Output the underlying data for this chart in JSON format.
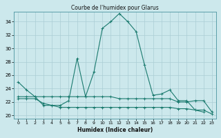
{
  "title": "Courbe de l'humidex pour Glarus",
  "xlabel": "Humidex (Indice chaleur)",
  "ylabel": "",
  "bg_color": "#cce8ec",
  "grid_color": "#aacdd4",
  "line_color": "#1a7a6e",
  "xlim": [
    -0.5,
    23.5
  ],
  "ylim": [
    19.5,
    35.5
  ],
  "yticks": [
    20,
    22,
    24,
    26,
    28,
    30,
    32,
    34
  ],
  "xticks": [
    0,
    1,
    2,
    3,
    4,
    5,
    6,
    7,
    8,
    9,
    10,
    11,
    12,
    13,
    14,
    15,
    16,
    17,
    18,
    19,
    20,
    21,
    22,
    23
  ],
  "series": [
    [
      25.0,
      23.8,
      22.8,
      21.5,
      21.5,
      21.5,
      22.2,
      28.5,
      22.8,
      26.5,
      33.0,
      34.0,
      35.2,
      34.0,
      32.5,
      27.5,
      23.0,
      23.2,
      23.8,
      22.2,
      22.2,
      20.8,
      20.5
    ],
    [
      22.8,
      22.8,
      22.8,
      22.8,
      22.8,
      22.8,
      22.8,
      22.8,
      22.8,
      22.8,
      22.8,
      22.8,
      22.5,
      22.5,
      22.5,
      22.5,
      22.5,
      22.5,
      22.5,
      22.0,
      22.0,
      22.2,
      22.2,
      20.5
    ],
    [
      22.5,
      22.5,
      22.5,
      21.8,
      21.5,
      21.2,
      21.2,
      21.2,
      21.2,
      21.2,
      21.2,
      21.2,
      21.2,
      21.2,
      21.2,
      21.2,
      21.2,
      21.2,
      21.2,
      21.0,
      21.0,
      20.8,
      20.8,
      20.2
    ]
  ],
  "series_x": [
    [
      0,
      1,
      2,
      3,
      4,
      5,
      6,
      7,
      8,
      9,
      10,
      11,
      12,
      13,
      14,
      15,
      16,
      17,
      18,
      19,
      20,
      21,
      22
    ],
    [
      0,
      1,
      2,
      3,
      4,
      5,
      6,
      7,
      8,
      9,
      10,
      11,
      12,
      13,
      14,
      15,
      16,
      17,
      18,
      19,
      20,
      21,
      22,
      23
    ],
    [
      0,
      1,
      2,
      3,
      4,
      5,
      6,
      7,
      8,
      9,
      10,
      11,
      12,
      13,
      14,
      15,
      16,
      17,
      18,
      19,
      20,
      21,
      22,
      23
    ]
  ]
}
